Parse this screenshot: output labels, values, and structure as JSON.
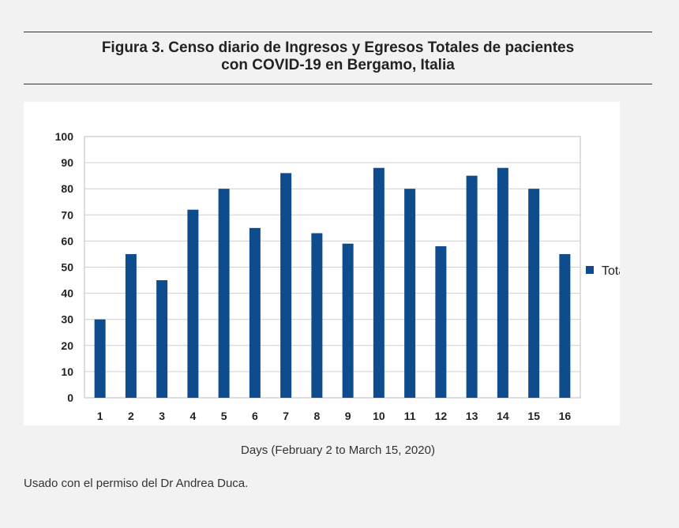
{
  "figure": {
    "title_line1": "Figura 3. Censo diario de Ingresos y Egresos Totales de pacientes",
    "title_line2": "con COVID-19 en Bergamo, Italia",
    "credit": "Usado con el permiso del Dr Andrea Duca."
  },
  "chart_data": {
    "type": "bar",
    "title": "",
    "xlabel": "Days (February 2 to March 15, 2020)",
    "ylabel": "",
    "categories": [
      "1",
      "2",
      "3",
      "4",
      "5",
      "6",
      "7",
      "8",
      "9",
      "10",
      "11",
      "12",
      "13",
      "14",
      "15",
      "16"
    ],
    "series": [
      {
        "name": "Total",
        "values": [
          30,
          55,
          45,
          72,
          80,
          65,
          86,
          63,
          59,
          88,
          80,
          58,
          85,
          88,
          80,
          55
        ],
        "color": "#0e4c8e"
      }
    ],
    "ylim": [
      0,
      100
    ],
    "yticks": [
      0,
      10,
      20,
      30,
      40,
      50,
      60,
      70,
      80,
      90,
      100
    ],
    "grid": true,
    "legend_position": "right"
  }
}
